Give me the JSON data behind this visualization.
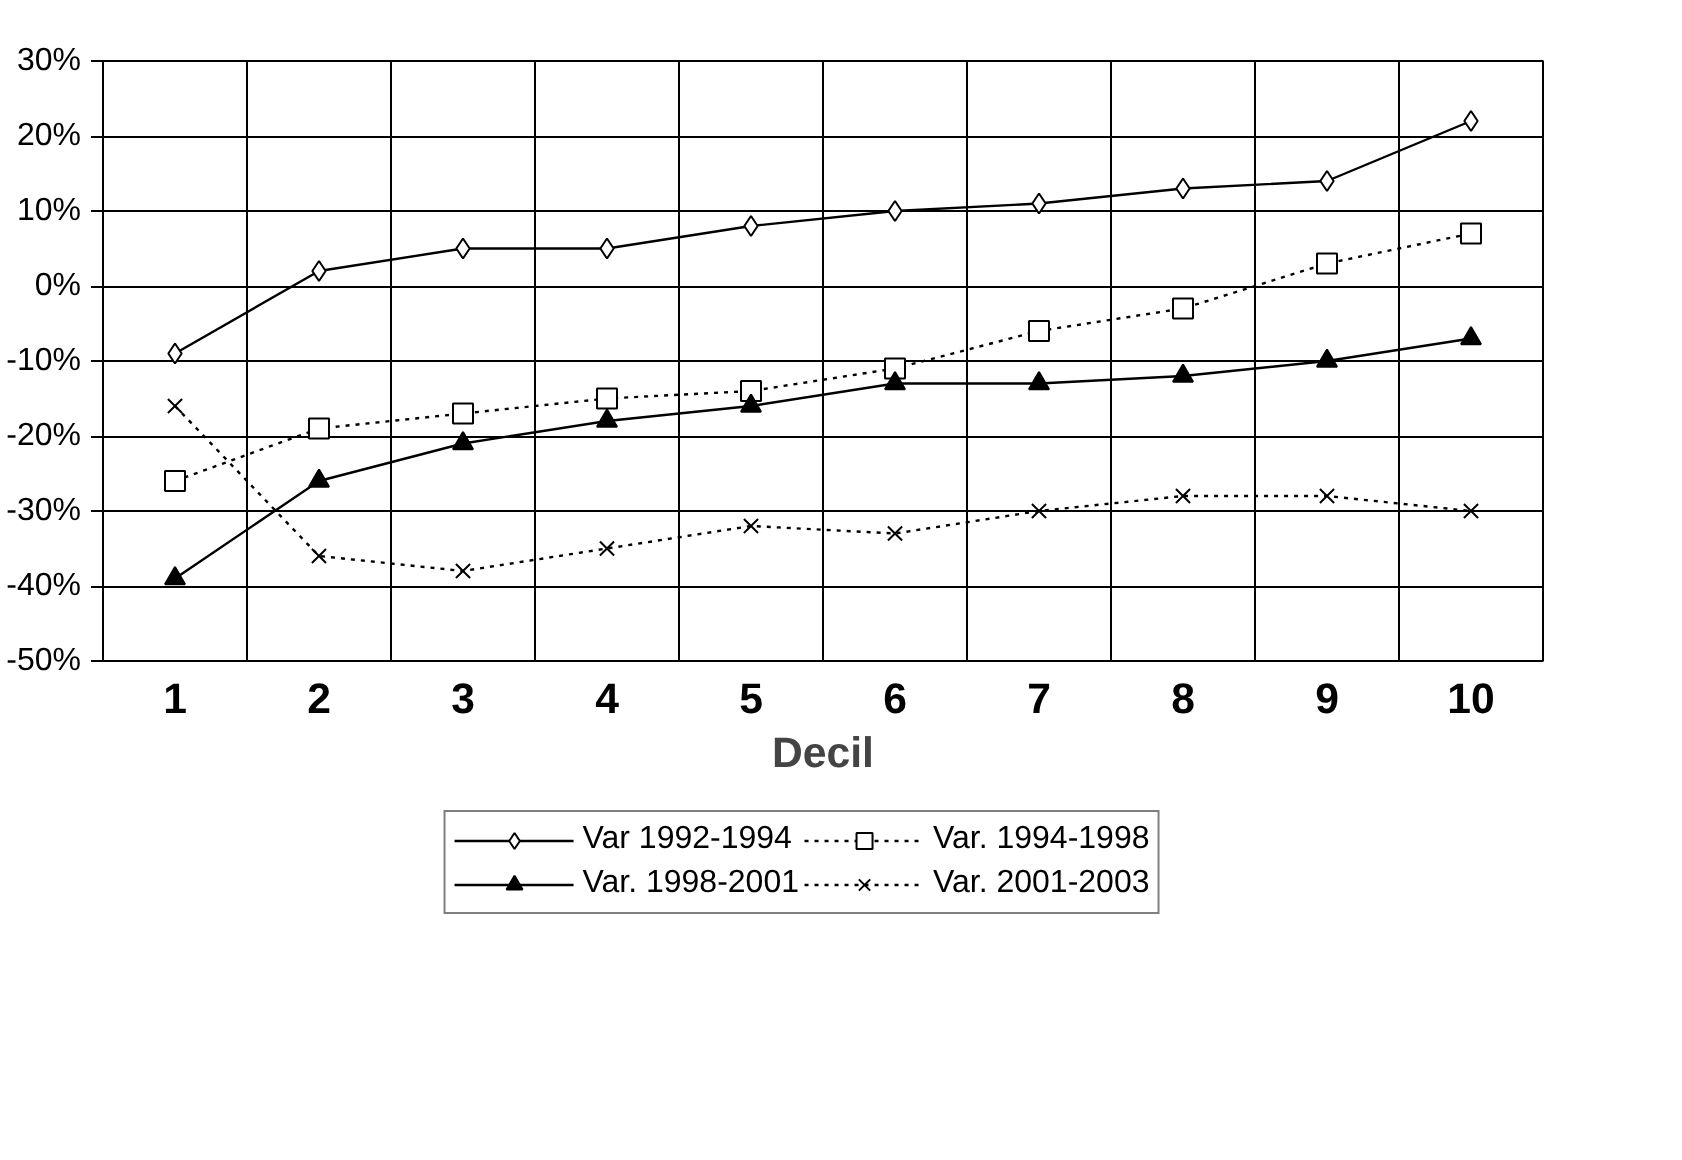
{
  "chart_data": {
    "type": "line",
    "xlabel": "Decil",
    "categories": [
      "1",
      "2",
      "3",
      "4",
      "5",
      "6",
      "7",
      "8",
      "9",
      "10"
    ],
    "ylim": [
      -50,
      30
    ],
    "yticks": [
      {
        "value": -50,
        "label": "-50%"
      },
      {
        "value": -40,
        "label": "-40%"
      },
      {
        "value": -30,
        "label": "-30%"
      },
      {
        "value": -20,
        "label": "-20%"
      },
      {
        "value": -10,
        "label": "-10%"
      },
      {
        "value": 0,
        "label": "0%"
      },
      {
        "value": 10,
        "label": "10%"
      },
      {
        "value": 20,
        "label": "20%"
      },
      {
        "value": 30,
        "label": "30%"
      }
    ],
    "grid": true,
    "legend": "bottom",
    "series": [
      {
        "name": "Var 1992-1994",
        "color": "#000000",
        "marker": "diamond",
        "line_style": "solid",
        "values": [
          -9,
          2,
          5,
          5,
          8,
          10,
          11,
          13,
          14,
          22
        ]
      },
      {
        "name": "Var. 1994-1998",
        "color": "#000000",
        "marker": "square",
        "line_style": "dotted",
        "values": [
          -26,
          -19,
          -17,
          -15,
          -14,
          -11,
          -6,
          -3,
          3,
          7
        ]
      },
      {
        "name": "Var. 1998-2001",
        "color": "#000000",
        "marker": "triangle",
        "line_style": "solid",
        "values": [
          -39,
          -26,
          -21,
          -18,
          -16,
          -13,
          -13,
          -12,
          -10,
          -7
        ]
      },
      {
        "name": "Var. 2001-2003",
        "color": "#000000",
        "marker": "cross",
        "line_style": "dotted",
        "values": [
          -16,
          -36,
          -38,
          -35,
          -32,
          -33,
          -30,
          -28,
          -28,
          -30
        ]
      }
    ]
  }
}
